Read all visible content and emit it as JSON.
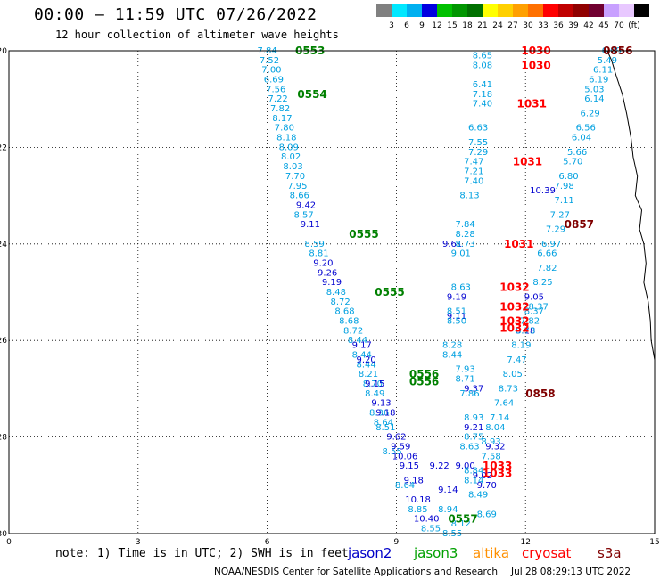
{
  "title": "00:00 – 11:59 UTC 07/26/2022",
  "subtitle": "12 hour collection of altimeter wave heights",
  "colorbar": {
    "colors": [
      "#808080",
      "#00e8ff",
      "#00b0f0",
      "#0000e0",
      "#00c000",
      "#009600",
      "#007000",
      "#ffff00",
      "#ffd000",
      "#ffa000",
      "#ff7000",
      "#ff0000",
      "#c00000",
      "#900000",
      "#700030",
      "#c8a0ff",
      "#e8c8ff",
      "#000000"
    ],
    "labels": [
      "3",
      "6",
      "9",
      "12",
      "15",
      "18",
      "21",
      "24",
      "27",
      "30",
      "33",
      "36",
      "39",
      "42",
      "45",
      "70",
      "(ft)"
    ]
  },
  "chart_data": {
    "type": "scatter",
    "xlim": [
      0,
      15
    ],
    "ylim": [
      -30,
      -20
    ],
    "xticks": [
      "0",
      "3",
      "6",
      "9",
      "12",
      "15"
    ],
    "yticks": [
      "-20",
      "-22",
      "-24",
      "-26",
      "-28",
      "-30"
    ],
    "grid": true,
    "coastline_color": "#000000",
    "series": [
      {
        "name": "jason3",
        "color": "#00a0e0",
        "points": [
          [
            6.0,
            -20.0,
            "7.84"
          ],
          [
            6.05,
            -20.2,
            "7.52"
          ],
          [
            6.1,
            -20.4,
            "7.00"
          ],
          [
            6.15,
            -20.6,
            "6.69"
          ],
          [
            6.2,
            -20.8,
            "7.56"
          ],
          [
            6.25,
            -21.0,
            "7.22"
          ],
          [
            6.3,
            -21.2,
            "7.82"
          ],
          [
            6.35,
            -21.4,
            "8.17"
          ],
          [
            6.4,
            -21.6,
            "7.80"
          ],
          [
            6.45,
            -21.8,
            "8.18"
          ],
          [
            6.5,
            -22.0,
            "8.09"
          ],
          [
            6.55,
            -22.2,
            "8.02"
          ],
          [
            6.6,
            -22.4,
            "8.03"
          ],
          [
            6.65,
            -22.6,
            "7.70"
          ],
          [
            6.7,
            -22.8,
            "7.95"
          ],
          [
            6.75,
            -23.0,
            "8.66"
          ],
          [
            6.85,
            -23.4,
            "8.57"
          ],
          [
            7.1,
            -24.0,
            "8.59"
          ],
          [
            7.2,
            -24.2,
            "8.81"
          ],
          [
            7.6,
            -25.0,
            "8.48"
          ],
          [
            7.7,
            -25.2,
            "8.72"
          ],
          [
            7.8,
            -25.4,
            "8.68"
          ],
          [
            7.9,
            -25.6,
            "8.68"
          ],
          [
            8.0,
            -25.8,
            "8.72"
          ],
          [
            8.1,
            -26.0,
            "8.44"
          ],
          [
            8.2,
            -26.3,
            "8.44"
          ],
          [
            8.3,
            -26.5,
            "8.44"
          ],
          [
            8.35,
            -26.7,
            "8.21"
          ],
          [
            8.45,
            -26.9,
            "8.70"
          ],
          [
            8.5,
            -27.1,
            "8.49"
          ],
          [
            8.6,
            -27.5,
            "8.36"
          ],
          [
            8.7,
            -27.7,
            "8.64"
          ],
          [
            8.75,
            -27.8,
            "8.51"
          ],
          [
            8.9,
            -28.3,
            "8.55"
          ],
          [
            9.2,
            -29.0,
            "8.64"
          ],
          [
            9.5,
            -29.5,
            "8.85"
          ],
          [
            9.8,
            -29.9,
            "8.55"
          ]
        ]
      },
      {
        "name": "jason2",
        "color": "#0000d0",
        "points": [
          [
            6.9,
            -23.2,
            "9.42"
          ],
          [
            7.0,
            -23.6,
            "9.11"
          ],
          [
            7.3,
            -24.4,
            "9.20"
          ],
          [
            7.4,
            -24.6,
            "9.26"
          ],
          [
            7.5,
            -24.8,
            "9.19"
          ],
          [
            8.2,
            -26.1,
            "9.17"
          ],
          [
            8.3,
            -26.4,
            "9.20"
          ],
          [
            8.5,
            -26.9,
            "9.15"
          ],
          [
            8.65,
            -27.3,
            "9.13"
          ],
          [
            8.75,
            -27.5,
            "9.18"
          ],
          [
            9.0,
            -28.0,
            "9.62"
          ],
          [
            9.1,
            -28.2,
            "9.59"
          ],
          [
            9.2,
            -28.4,
            "10.06"
          ],
          [
            9.3,
            -28.6,
            "9.15"
          ],
          [
            9.4,
            -28.9,
            "9.18"
          ],
          [
            9.5,
            -29.3,
            "10.18"
          ],
          [
            9.7,
            -29.7,
            "10.40"
          ],
          [
            10.0,
            -28.6,
            "9.22"
          ],
          [
            10.2,
            -29.1,
            "9.14"
          ],
          [
            10.6,
            -28.6,
            "9.00"
          ],
          [
            11.0,
            -28.8,
            "9.02"
          ],
          [
            11.1,
            -29.0,
            "9.70"
          ],
          [
            10.3,
            -24.0,
            "9.61"
          ],
          [
            10.4,
            -25.1,
            "9.19"
          ],
          [
            10.4,
            -25.5,
            "9.11"
          ],
          [
            10.8,
            -27.8,
            "9.21"
          ],
          [
            10.8,
            -27.0,
            "9.37"
          ],
          [
            12.4,
            -22.9,
            "10.39"
          ],
          [
            12.2,
            -25.1,
            "9.05"
          ],
          [
            11.3,
            -28.2,
            "9.32"
          ],
          [
            12.0,
            -25.8,
            "9.18"
          ]
        ]
      },
      {
        "name": "jason3-east",
        "color": "#00a0e0",
        "points": [
          [
            11.0,
            -20.1,
            "8.65"
          ],
          [
            11.0,
            -20.3,
            "8.08"
          ],
          [
            11.0,
            -20.7,
            "6.41"
          ],
          [
            11.0,
            -20.9,
            "7.18"
          ],
          [
            11.0,
            -21.1,
            "7.40"
          ],
          [
            10.9,
            -21.6,
            "6.63"
          ],
          [
            10.9,
            -21.9,
            "7.55"
          ],
          [
            10.9,
            -22.1,
            "7.29"
          ],
          [
            10.8,
            -22.3,
            "7.47"
          ],
          [
            10.8,
            -22.5,
            "7.21"
          ],
          [
            10.8,
            -22.7,
            "7.40"
          ],
          [
            10.7,
            -23.0,
            "8.13"
          ],
          [
            10.6,
            -23.6,
            "7.84"
          ],
          [
            10.6,
            -23.8,
            "8.28"
          ],
          [
            10.6,
            -24.0,
            "8.73"
          ],
          [
            10.5,
            -24.2,
            "9.01"
          ],
          [
            10.5,
            -24.9,
            "8.63"
          ],
          [
            10.4,
            -25.4,
            "8.51"
          ],
          [
            10.4,
            -25.6,
            "8.50"
          ],
          [
            10.3,
            -26.1,
            "8.28"
          ],
          [
            10.3,
            -26.3,
            "8.44"
          ],
          [
            10.6,
            -26.6,
            "7.93"
          ],
          [
            10.6,
            -26.8,
            "8.71"
          ],
          [
            10.7,
            -27.1,
            "7.86"
          ],
          [
            10.8,
            -27.6,
            "8.93"
          ],
          [
            10.8,
            -28.0,
            "8.75"
          ],
          [
            10.7,
            -28.2,
            "8.63"
          ],
          [
            10.8,
            -28.7,
            "8.84"
          ],
          [
            10.8,
            -28.9,
            "8.14"
          ],
          [
            10.9,
            -29.2,
            "8.49"
          ],
          [
            10.2,
            -29.5,
            "8.94"
          ],
          [
            10.5,
            -29.8,
            "8.12"
          ],
          [
            11.1,
            -29.6,
            "8.69"
          ],
          [
            10.3,
            -30.0,
            "8.55"
          ],
          [
            11.8,
            -26.4,
            "7.47"
          ],
          [
            11.7,
            -26.7,
            "8.05"
          ],
          [
            11.6,
            -27.0,
            "8.73"
          ],
          [
            11.5,
            -27.3,
            "7.64"
          ],
          [
            11.4,
            -27.6,
            "7.14"
          ],
          [
            11.3,
            -27.8,
            "8.04"
          ],
          [
            11.2,
            -28.1,
            "8.93"
          ],
          [
            11.2,
            -28.4,
            "7.58"
          ],
          [
            11.9,
            -26.1,
            "8.19"
          ],
          [
            12.0,
            -25.8,
            "8.73"
          ],
          [
            12.1,
            -25.6,
            "7.82"
          ],
          [
            12.2,
            -25.4,
            "8.37"
          ],
          [
            12.3,
            -25.3,
            "8.37"
          ],
          [
            12.4,
            -24.8,
            "8.25"
          ],
          [
            12.5,
            -24.5,
            "7.82"
          ],
          [
            12.5,
            -24.2,
            "6.66"
          ],
          [
            12.6,
            -24.0,
            "6.97"
          ],
          [
            12.7,
            -23.7,
            "7.29"
          ],
          [
            12.8,
            -23.4,
            "7.27"
          ],
          [
            12.9,
            -23.1,
            "7.11"
          ],
          [
            12.9,
            -22.8,
            "7.98"
          ],
          [
            13.0,
            -22.6,
            "6.80"
          ],
          [
            13.1,
            -22.3,
            "5.70"
          ],
          [
            13.2,
            -22.1,
            "5.66"
          ],
          [
            13.3,
            -21.8,
            "6.04"
          ],
          [
            13.4,
            -21.6,
            "6.56"
          ],
          [
            13.5,
            -21.3,
            "6.29"
          ],
          [
            13.6,
            -21.0,
            "6.14"
          ],
          [
            13.6,
            -20.8,
            "5.03"
          ],
          [
            13.7,
            -20.6,
            "6.19"
          ],
          [
            13.8,
            -20.4,
            "6.11"
          ],
          [
            13.9,
            -20.2,
            "5.49"
          ],
          [
            14.0,
            -20.0,
            "6.09"
          ]
        ]
      }
    ],
    "time_labels": [
      {
        "x": 6.65,
        "y": -20.0,
        "text": "0553",
        "color": "#008000"
      },
      {
        "x": 6.7,
        "y": -20.9,
        "text": "0554",
        "color": "#008000"
      },
      {
        "x": 7.9,
        "y": -23.8,
        "text": "0555",
        "color": "#008000"
      },
      {
        "x": 8.5,
        "y": -25.0,
        "text": "0555",
        "color": "#008000"
      },
      {
        "x": 9.3,
        "y": -26.7,
        "text": "0556",
        "color": "#008000"
      },
      {
        "x": 9.3,
        "y": -26.85,
        "text": "0556",
        "color": "#008000"
      },
      {
        "x": 10.2,
        "y": -29.7,
        "text": "0557",
        "color": "#008000"
      },
      {
        "x": 11.9,
        "y": -20.0,
        "text": "1030",
        "color": "#ff0000"
      },
      {
        "x": 11.9,
        "y": -20.3,
        "text": "1030",
        "color": "#ff0000"
      },
      {
        "x": 11.8,
        "y": -21.1,
        "text": "1031",
        "color": "#ff0000"
      },
      {
        "x": 11.7,
        "y": -22.3,
        "text": "1031",
        "color": "#ff0000"
      },
      {
        "x": 11.5,
        "y": -24.0,
        "text": "1031",
        "color": "#ff0000"
      },
      {
        "x": 11.4,
        "y": -24.9,
        "text": "1032",
        "color": "#ff0000"
      },
      {
        "x": 11.4,
        "y": -25.3,
        "text": "1032",
        "color": "#ff0000"
      },
      {
        "x": 11.4,
        "y": -25.6,
        "text": "1032",
        "color": "#ff0000"
      },
      {
        "x": 11.4,
        "y": -25.75,
        "text": "1032",
        "color": "#ff0000"
      },
      {
        "x": 11.0,
        "y": -28.6,
        "text": "1033",
        "color": "#ff0000"
      },
      {
        "x": 11.0,
        "y": -28.75,
        "text": "1033",
        "color": "#ff0000"
      },
      {
        "x": 13.8,
        "y": -20.0,
        "text": "0856",
        "color": "#800000"
      },
      {
        "x": 12.9,
        "y": -23.6,
        "text": "0857",
        "color": "#800000"
      },
      {
        "x": 12.0,
        "y": -27.1,
        "text": "0858",
        "color": "#800000"
      }
    ]
  },
  "legend": {
    "note": "note:  1) Time is in UTC; 2) SWH is in feet",
    "items": [
      {
        "text": "jason2",
        "color": "#0000c8"
      },
      {
        "text": "jason3",
        "color": "#00a000"
      },
      {
        "text": "altika",
        "color": "#ff9000"
      },
      {
        "text": "cryosat",
        "color": "#ff0000"
      },
      {
        "text": "s3a",
        "color": "#800000"
      }
    ]
  },
  "footer": {
    "credit": "NOAA/NESDIS Center for Satellite Applications and Research",
    "timestamp": "Jul 28 08:29:13 UTC 2022"
  }
}
